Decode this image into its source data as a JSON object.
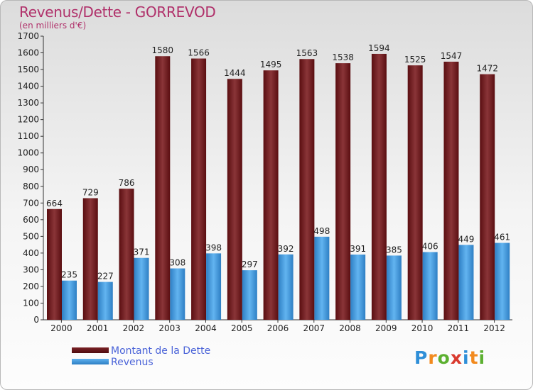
{
  "title": "Revenus/Dette - GORREVOD",
  "subtitle": "(en milliers d'€)",
  "colors": {
    "debt": "#6b1518",
    "debt_light": "#8a3538",
    "revenue": "#3a8fd6",
    "revenue_light": "#5fb1ef",
    "title": "#b0306a",
    "legend_text": "#4a63d8"
  },
  "logo": {
    "text": "Proxiti",
    "letters": [
      {
        "ch": "P",
        "color": "#2f8fd8"
      },
      {
        "ch": "r",
        "color": "#f28a1e"
      },
      {
        "ch": "o",
        "color": "#5cb030"
      },
      {
        "ch": "x",
        "color": "#d93a2e"
      },
      {
        "ch": "i",
        "color": "#2f8fd8"
      },
      {
        "ch": "t",
        "color": "#f28a1e"
      },
      {
        "ch": "i",
        "color": "#5cb030"
      }
    ]
  },
  "chart_data": {
    "type": "bar",
    "title": "Revenus/Dette - GORREVOD",
    "subtitle": "(en milliers d'€)",
    "xlabel": "",
    "ylabel": "",
    "ylim": [
      0,
      1700
    ],
    "yticks": [
      0,
      100,
      200,
      300,
      400,
      500,
      600,
      700,
      800,
      900,
      1000,
      1100,
      1200,
      1300,
      1400,
      1500,
      1600,
      1700
    ],
    "grid": false,
    "legend_position": "bottom-left",
    "categories": [
      "2000",
      "2001",
      "2002",
      "2003",
      "2004",
      "2005",
      "2006",
      "2007",
      "2008",
      "2009",
      "2010",
      "2011",
      "2012"
    ],
    "series": [
      {
        "name": "Montant de la Dette",
        "color": "#6b1518",
        "values": [
          664,
          729,
          786,
          1580,
          1566,
          1444,
          1495,
          1563,
          1538,
          1594,
          1525,
          1547,
          1472
        ]
      },
      {
        "name": "Revenus",
        "color": "#3a8fd6",
        "values": [
          235,
          227,
          371,
          308,
          398,
          297,
          392,
          498,
          391,
          385,
          406,
          449,
          461
        ]
      }
    ]
  }
}
